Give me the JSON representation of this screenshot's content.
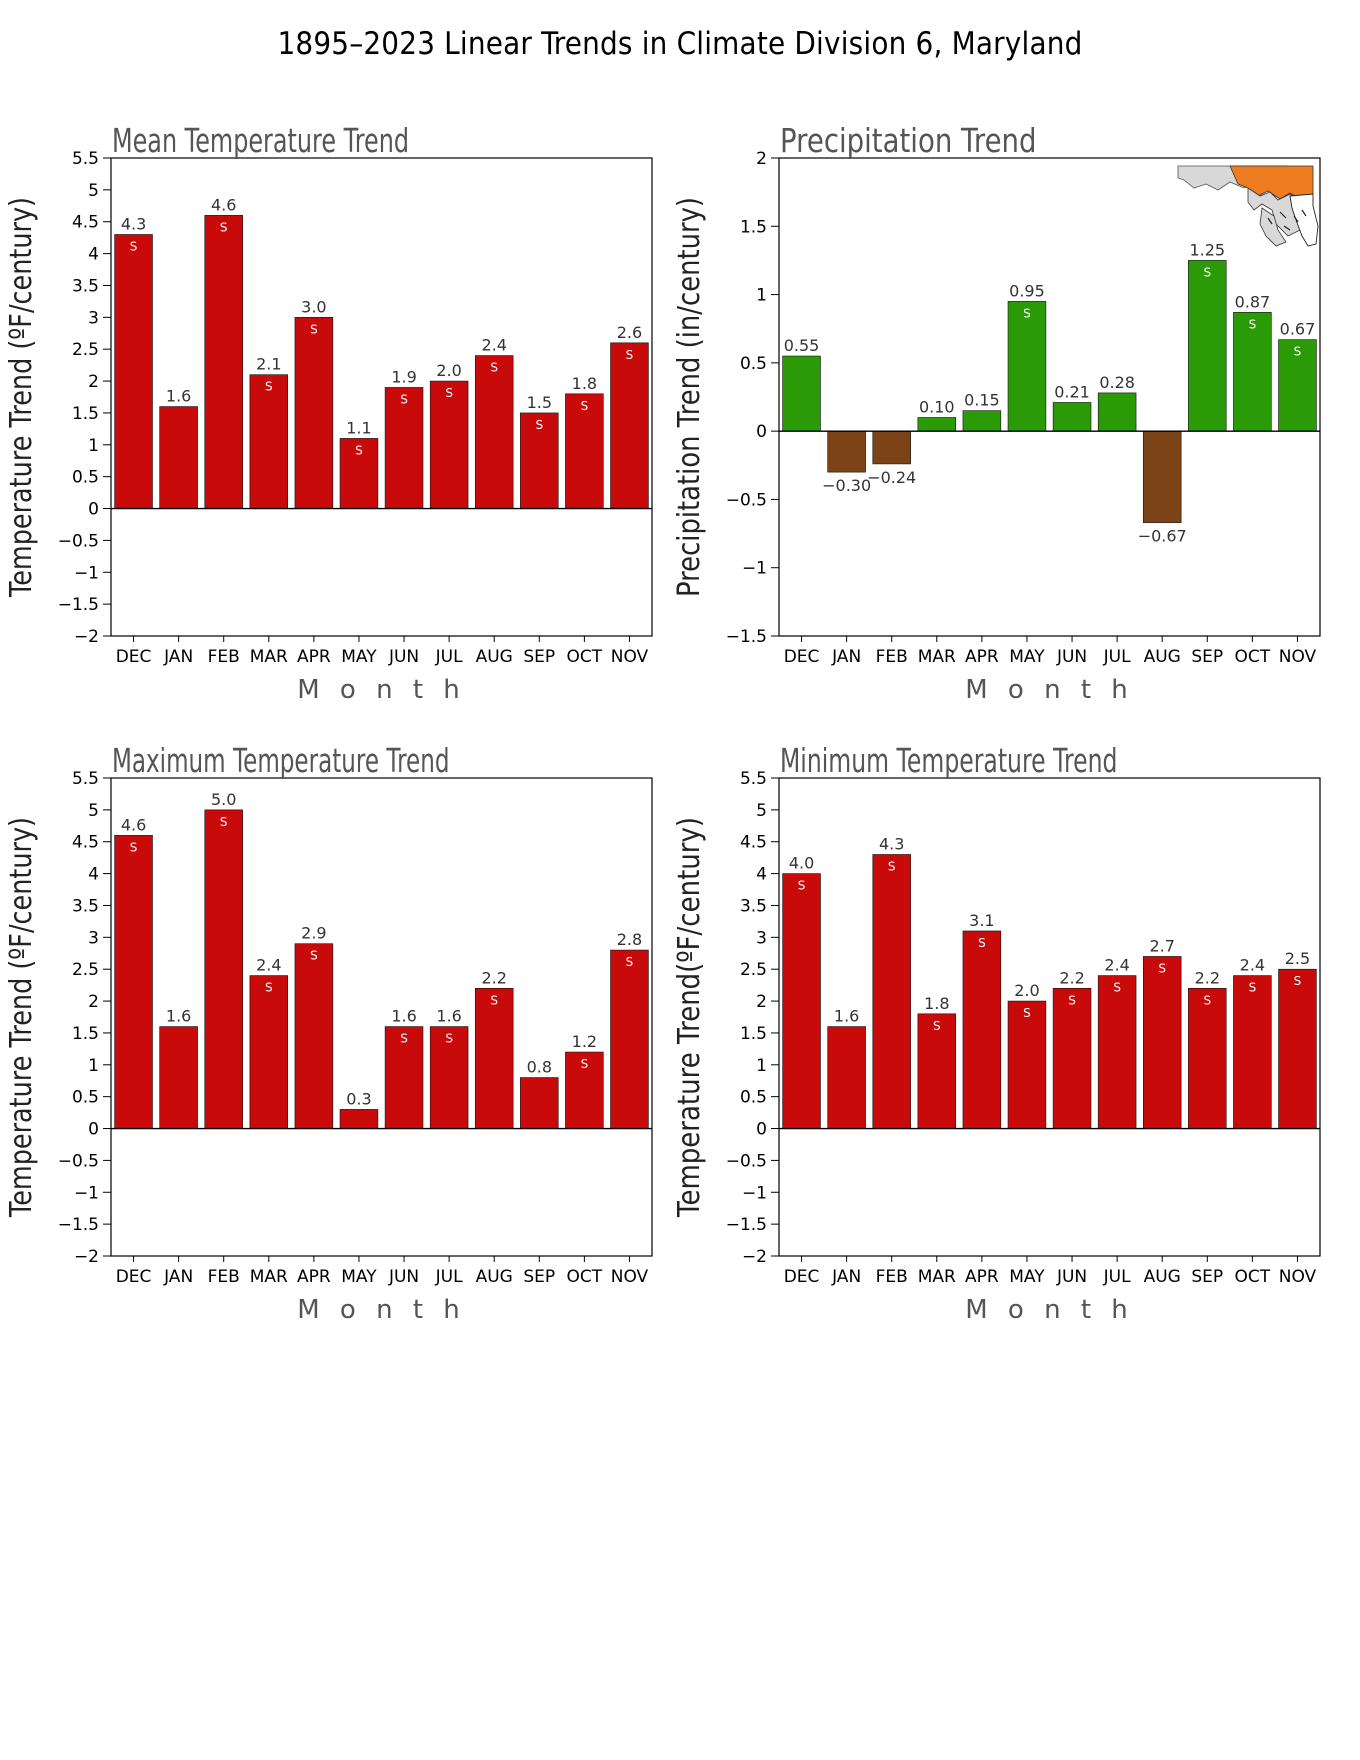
{
  "page": {
    "title": "1895–2023 Linear Trends in Climate Division 6, Maryland"
  },
  "colors": {
    "temperature_bar": "#c80a0a",
    "precip_positive": "#2a9a07",
    "precip_negative": "#7b4316",
    "map_highlight": "#f07c22",
    "map_other": "#d8d8d8"
  },
  "chart_data": [
    {
      "id": "mean",
      "type": "bar",
      "title": "Mean Temperature Trend",
      "xlabel": "M o n t h",
      "ylabel": "Temperature Trend (ºF/century)",
      "ylim": [
        -2,
        5.5
      ],
      "yticks": [
        -2,
        -1.5,
        -1,
        -0.5,
        0,
        0.5,
        1,
        1.5,
        2,
        2.5,
        3,
        3.5,
        4,
        4.5,
        5,
        5.5
      ],
      "ytick_labels": [
        "−2",
        "−1.5",
        "−1",
        "−0.5",
        "0",
        "0.5",
        "1",
        "1.5",
        "2",
        "2.5",
        "3",
        "3.5",
        "4",
        "4.5",
        "5",
        "5.5"
      ],
      "categories": [
        "DEC",
        "JAN",
        "FEB",
        "MAR",
        "APR",
        "MAY",
        "JUN",
        "JUL",
        "AUG",
        "SEP",
        "OCT",
        "NOV"
      ],
      "values": [
        4.3,
        1.6,
        4.6,
        2.1,
        3.0,
        1.1,
        1.9,
        2.0,
        2.4,
        1.5,
        1.8,
        2.6
      ],
      "value_labels": [
        "4.3",
        "1.6",
        "4.6",
        "2.1",
        "3.0",
        "1.1",
        "1.9",
        "2.0",
        "2.4",
        "1.5",
        "1.8",
        "2.6"
      ],
      "significant": [
        true,
        false,
        true,
        true,
        true,
        true,
        true,
        true,
        true,
        true,
        true,
        true
      ],
      "significance_marker": "S",
      "grid": false,
      "legend": "none"
    },
    {
      "id": "precip",
      "type": "bar",
      "title": "Precipitation Trend",
      "xlabel": "M o n t h",
      "ylabel": "Precipitation Trend (in/century)",
      "ylim": [
        -1.5,
        2
      ],
      "yticks": [
        -1.5,
        -1,
        -0.5,
        0,
        0.5,
        1,
        1.5,
        2
      ],
      "ytick_labels": [
        "−1.5",
        "−1",
        "−0.5",
        "0",
        "0.5",
        "1",
        "1.5",
        "2"
      ],
      "categories": [
        "DEC",
        "JAN",
        "FEB",
        "MAR",
        "APR",
        "MAY",
        "JUN",
        "JUL",
        "AUG",
        "SEP",
        "OCT",
        "NOV"
      ],
      "values": [
        0.55,
        -0.3,
        -0.24,
        0.1,
        0.15,
        0.95,
        0.21,
        0.28,
        -0.67,
        1.25,
        0.87,
        0.67
      ],
      "value_labels": [
        "0.55",
        "−0.30",
        "−0.24",
        "0.10",
        "0.15",
        "0.95",
        "0.21",
        "0.28",
        "−0.67",
        "1.25",
        "0.87",
        "0.67"
      ],
      "significant": [
        false,
        false,
        false,
        false,
        false,
        true,
        false,
        false,
        false,
        true,
        true,
        true
      ],
      "significance_marker": "S",
      "inset_map": "Maryland climate division map (division 6 highlighted)",
      "grid": false,
      "legend": "none"
    },
    {
      "id": "max",
      "type": "bar",
      "title": "Maximum Temperature Trend",
      "xlabel": "M o n t h",
      "ylabel": "Temperature Trend (ºF/century)",
      "ylim": [
        -2,
        5.5
      ],
      "yticks": [
        -2,
        -1.5,
        -1,
        -0.5,
        0,
        0.5,
        1,
        1.5,
        2,
        2.5,
        3,
        3.5,
        4,
        4.5,
        5,
        5.5
      ],
      "ytick_labels": [
        "−2",
        "−1.5",
        "−1",
        "−0.5",
        "0",
        "0.5",
        "1",
        "1.5",
        "2",
        "2.5",
        "3",
        "3.5",
        "4",
        "4.5",
        "5",
        "5.5"
      ],
      "categories": [
        "DEC",
        "JAN",
        "FEB",
        "MAR",
        "APR",
        "MAY",
        "JUN",
        "JUL",
        "AUG",
        "SEP",
        "OCT",
        "NOV"
      ],
      "values": [
        4.6,
        1.6,
        5.0,
        2.4,
        2.9,
        0.3,
        1.6,
        1.6,
        2.2,
        0.8,
        1.2,
        2.8
      ],
      "value_labels": [
        "4.6",
        "1.6",
        "5.0",
        "2.4",
        "2.9",
        "0.3",
        "1.6",
        "1.6",
        "2.2",
        "0.8",
        "1.2",
        "2.8"
      ],
      "significant": [
        true,
        false,
        true,
        true,
        true,
        false,
        true,
        true,
        true,
        false,
        true,
        true
      ],
      "significance_marker": "S",
      "grid": false,
      "legend": "none"
    },
    {
      "id": "min",
      "type": "bar",
      "title": "Minimum Temperature Trend",
      "xlabel": "M o n t h",
      "ylabel": "Temperature Trend(ºF/century)",
      "ylim": [
        -2,
        5.5
      ],
      "yticks": [
        -2,
        -1.5,
        -1,
        -0.5,
        0,
        0.5,
        1,
        1.5,
        2,
        2.5,
        3,
        3.5,
        4,
        4.5,
        5,
        5.5
      ],
      "ytick_labels": [
        "−2",
        "−1.5",
        "−1",
        "−0.5",
        "0",
        "0.5",
        "1",
        "1.5",
        "2",
        "2.5",
        "3",
        "3.5",
        "4",
        "4.5",
        "5",
        "5.5"
      ],
      "categories": [
        "DEC",
        "JAN",
        "FEB",
        "MAR",
        "APR",
        "MAY",
        "JUN",
        "JUL",
        "AUG",
        "SEP",
        "OCT",
        "NOV"
      ],
      "values": [
        4.0,
        1.6,
        4.3,
        1.8,
        3.1,
        2.0,
        2.2,
        2.4,
        2.7,
        2.2,
        2.4,
        2.5
      ],
      "value_labels": [
        "4.0",
        "1.6",
        "4.3",
        "1.8",
        "3.1",
        "2.0",
        "2.2",
        "2.4",
        "2.7",
        "2.2",
        "2.4",
        "2.5"
      ],
      "significant": [
        true,
        false,
        true,
        true,
        true,
        true,
        true,
        true,
        true,
        true,
        true,
        true
      ],
      "significance_marker": "S",
      "grid": false,
      "legend": "none"
    }
  ]
}
